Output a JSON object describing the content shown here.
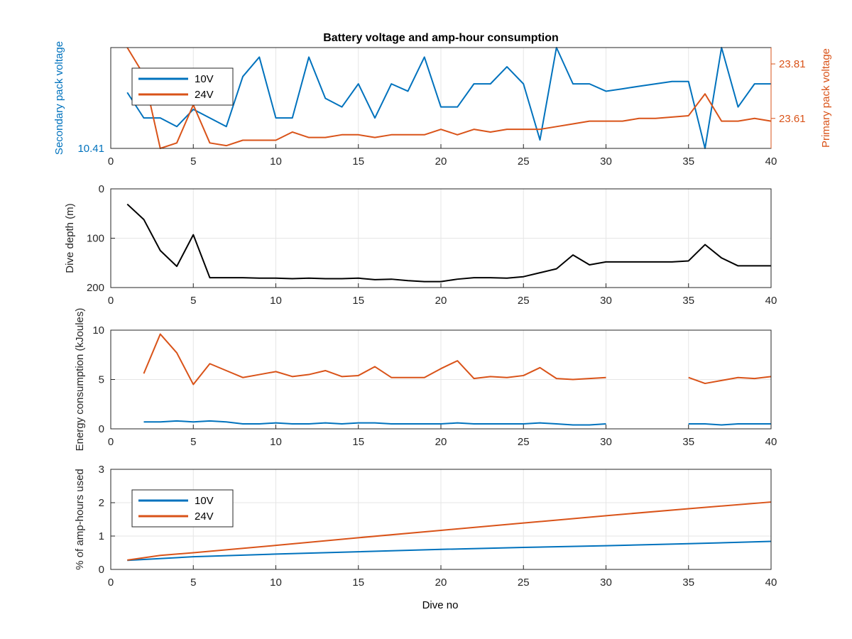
{
  "figure": {
    "title": "Battery voltage and amp-hour consumption",
    "xlabel": "Dive no"
  },
  "colors": {
    "blue": "#0072BD",
    "orange": "#D95319",
    "black": "#000000"
  },
  "chart_data": [
    {
      "type": "line",
      "title": "Battery voltage and amp-hour consumption",
      "xlabel": "",
      "ylabel": "Secondary pack voltage",
      "ylabel_right": "Primary pack voltage",
      "xlim": [
        0,
        40
      ],
      "xticks": [
        0,
        5,
        10,
        15,
        20,
        25,
        30,
        35,
        40
      ],
      "ylim_left": [
        10.41,
        10.465
      ],
      "yticks_left": [
        10.41
      ],
      "ylim_right": [
        23.5,
        23.87
      ],
      "yticks_right": [
        23.61,
        23.81
      ],
      "grid": true,
      "legend": {
        "position": "top-left",
        "entries": [
          "10V",
          "24V"
        ]
      },
      "series": [
        {
          "name": "10V",
          "axis": "left",
          "color": "#0072BD",
          "x": [
            1,
            2,
            3,
            4,
            5,
            6,
            7,
            8,
            9,
            10,
            11,
            12,
            13,
            14,
            15,
            16,
            17,
            18,
            19,
            20,
            21,
            22,
            23,
            24,
            25,
            26,
            27,
            28,
            29,
            30,
            31,
            32,
            33,
            34,
            35,
            36,
            37,
            38,
            39,
            40
          ],
          "y": [
            10.4405,
            10.4266,
            10.4266,
            10.4219,
            10.4313,
            10.4266,
            10.4219,
            10.4492,
            10.4598,
            10.4266,
            10.4266,
            10.4598,
            10.4373,
            10.4326,
            10.4452,
            10.4266,
            10.4452,
            10.4412,
            10.4598,
            10.4326,
            10.4326,
            10.4452,
            10.4452,
            10.4545,
            10.4452,
            10.4146,
            10.465,
            10.4452,
            10.4452,
            10.4412,
            10.4425,
            10.4439,
            10.4452,
            10.4465,
            10.4465,
            10.41,
            10.465,
            10.4326,
            10.4452,
            10.4452
          ]
        },
        {
          "name": "24V",
          "axis": "right",
          "color": "#D95319",
          "x": [
            1,
            2,
            3,
            4,
            5,
            6,
            7,
            8,
            9,
            10,
            11,
            12,
            13,
            14,
            15,
            16,
            17,
            18,
            19,
            20,
            21,
            22,
            23,
            24,
            25,
            26,
            27,
            28,
            29,
            30,
            31,
            32,
            33,
            34,
            35,
            36,
            37,
            38,
            39,
            40
          ],
          "y": [
            23.87,
            23.77,
            23.5,
            23.52,
            23.66,
            23.52,
            23.51,
            23.53,
            23.53,
            23.53,
            23.56,
            23.54,
            23.54,
            23.55,
            23.55,
            23.54,
            23.55,
            23.55,
            23.55,
            23.57,
            23.55,
            23.57,
            23.56,
            23.57,
            23.57,
            23.57,
            23.58,
            23.59,
            23.6,
            23.6,
            23.6,
            23.61,
            23.61,
            23.615,
            23.62,
            23.7,
            23.6,
            23.6,
            23.61,
            23.6
          ]
        }
      ]
    },
    {
      "type": "line",
      "ylabel": "Dive depth (m)",
      "xlim": [
        0,
        40
      ],
      "xticks": [
        0,
        5,
        10,
        15,
        20,
        25,
        30,
        35,
        40
      ],
      "ylim": [
        0,
        200
      ],
      "ylim_reversed": true,
      "yticks": [
        0,
        100,
        200
      ],
      "grid": true,
      "series": [
        {
          "color": "#000000",
          "x": [
            1,
            2,
            3,
            4,
            5,
            6,
            7,
            8,
            9,
            10,
            11,
            12,
            13,
            14,
            15,
            16,
            17,
            18,
            19,
            20,
            21,
            22,
            23,
            24,
            25,
            26,
            27,
            28,
            29,
            30,
            31,
            32,
            33,
            34,
            35,
            36,
            37,
            38,
            39,
            40
          ],
          "y": [
            31,
            62,
            125,
            157,
            93,
            180,
            180,
            180,
            181,
            181,
            182,
            181,
            182,
            182,
            181,
            184,
            183,
            186,
            188,
            188,
            183,
            180,
            180,
            181,
            178,
            170,
            162,
            134,
            154,
            148,
            148,
            148,
            148,
            148,
            146,
            113,
            140,
            156,
            156,
            156
          ]
        }
      ]
    },
    {
      "type": "line",
      "ylabel": "Energy consumption (kJoules)",
      "xlim": [
        0,
        40
      ],
      "xticks": [
        0,
        5,
        10,
        15,
        20,
        25,
        30,
        35,
        40
      ],
      "ylim": [
        0,
        10
      ],
      "yticks": [
        0,
        5,
        10
      ],
      "grid": true,
      "series": [
        {
          "name": "24V",
          "color": "#D95319",
          "x": [
            2,
            3,
            4,
            5,
            6,
            7,
            8,
            9,
            10,
            11,
            12,
            13,
            14,
            15,
            16,
            17,
            18,
            19,
            20,
            21,
            22,
            23,
            24,
            25,
            26,
            27,
            28,
            29,
            30,
            null,
            35,
            36,
            37,
            38,
            39,
            40
          ],
          "y": [
            5.6,
            9.6,
            7.7,
            4.5,
            6.6,
            5.9,
            5.2,
            5.5,
            5.8,
            5.3,
            5.5,
            5.9,
            5.3,
            5.4,
            6.3,
            5.2,
            5.2,
            5.2,
            6.1,
            6.9,
            5.1,
            5.3,
            5.2,
            5.4,
            6.2,
            5.1,
            5.0,
            5.1,
            5.2,
            null,
            5.2,
            4.6,
            4.9,
            5.2,
            5.1,
            5.3
          ]
        },
        {
          "name": "10V",
          "color": "#0072BD",
          "x": [
            2,
            3,
            4,
            5,
            6,
            7,
            8,
            9,
            10,
            11,
            12,
            13,
            14,
            15,
            16,
            17,
            18,
            19,
            20,
            21,
            22,
            23,
            24,
            25,
            26,
            27,
            28,
            29,
            30,
            null,
            35,
            36,
            37,
            38,
            39,
            40
          ],
          "y": [
            0.7,
            0.7,
            0.8,
            0.7,
            0.8,
            0.7,
            0.5,
            0.5,
            0.6,
            0.5,
            0.5,
            0.6,
            0.5,
            0.6,
            0.6,
            0.5,
            0.5,
            0.5,
            0.5,
            0.6,
            0.5,
            0.5,
            0.5,
            0.5,
            0.6,
            0.5,
            0.4,
            0.4,
            0.5,
            null,
            0.5,
            0.5,
            0.4,
            0.5,
            0.5,
            0.5
          ]
        }
      ]
    },
    {
      "type": "line",
      "ylabel": "% of amp-hours used",
      "xlabel": "Dive no",
      "xlim": [
        0,
        40
      ],
      "xticks": [
        0,
        5,
        10,
        15,
        20,
        25,
        30,
        35,
        40
      ],
      "ylim": [
        0,
        3
      ],
      "yticks": [
        0,
        1,
        2,
        3
      ],
      "grid": true,
      "legend": {
        "position": "top-left",
        "entries": [
          "10V",
          "24V"
        ]
      },
      "series": [
        {
          "name": "10V",
          "color": "#0072BD",
          "x": [
            1,
            5,
            10,
            15,
            20,
            25,
            30,
            35,
            40
          ],
          "y": [
            0.27,
            0.38,
            0.46,
            0.53,
            0.6,
            0.66,
            0.71,
            0.77,
            0.84
          ]
        },
        {
          "name": "24V",
          "color": "#D95319",
          "x": [
            1,
            3,
            5,
            10,
            15,
            20,
            25,
            30,
            35,
            40
          ],
          "y": [
            0.28,
            0.42,
            0.5,
            0.72,
            0.95,
            1.17,
            1.39,
            1.61,
            1.82,
            2.02
          ]
        }
      ]
    }
  ]
}
